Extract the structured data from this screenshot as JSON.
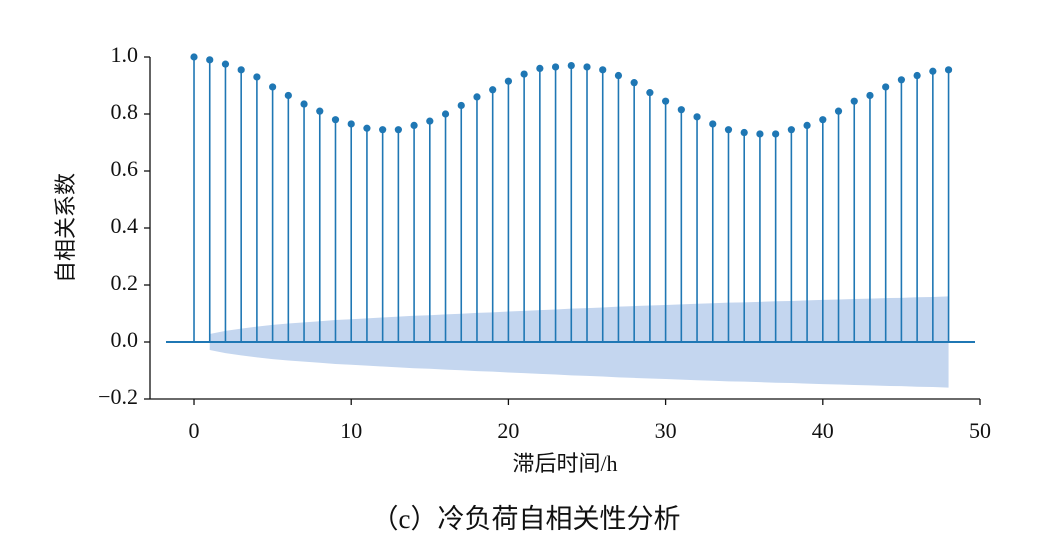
{
  "chart_data": {
    "type": "stem",
    "caption": "（c）冷负荷自相关性分析",
    "xlabel": "滞后时间/h",
    "ylabel": "自相关系数",
    "x": [
      0,
      1,
      2,
      3,
      4,
      5,
      6,
      7,
      8,
      9,
      10,
      11,
      12,
      13,
      14,
      15,
      16,
      17,
      18,
      19,
      20,
      21,
      22,
      23,
      24,
      25,
      26,
      27,
      28,
      29,
      30,
      31,
      32,
      33,
      34,
      35,
      36,
      37,
      38,
      39,
      40,
      41,
      42,
      43,
      44,
      45,
      46,
      47,
      48
    ],
    "values": [
      1.0,
      0.99,
      0.975,
      0.955,
      0.93,
      0.895,
      0.865,
      0.835,
      0.81,
      0.78,
      0.765,
      0.75,
      0.745,
      0.745,
      0.76,
      0.775,
      0.8,
      0.83,
      0.86,
      0.885,
      0.915,
      0.94,
      0.96,
      0.965,
      0.97,
      0.965,
      0.955,
      0.935,
      0.91,
      0.875,
      0.845,
      0.815,
      0.79,
      0.765,
      0.745,
      0.735,
      0.73,
      0.73,
      0.745,
      0.76,
      0.78,
      0.81,
      0.845,
      0.865,
      0.895,
      0.92,
      0.935,
      0.95,
      0.955
    ],
    "color": "#1f77b4",
    "band_x": [
      1,
      2,
      3,
      4,
      5,
      6,
      7,
      8,
      9,
      10,
      11,
      12,
      13,
      14,
      15,
      16,
      17,
      18,
      19,
      20,
      21,
      22,
      23,
      24,
      25,
      26,
      27,
      28,
      29,
      30,
      31,
      32,
      33,
      34,
      35,
      36,
      37,
      38,
      39,
      40,
      41,
      42,
      43,
      44,
      45,
      46,
      47,
      48
    ],
    "band": [
      0.028,
      0.039,
      0.047,
      0.054,
      0.06,
      0.065,
      0.069,
      0.073,
      0.077,
      0.08,
      0.083,
      0.086,
      0.089,
      0.092,
      0.094,
      0.097,
      0.099,
      0.102,
      0.104,
      0.107,
      0.109,
      0.112,
      0.114,
      0.117,
      0.119,
      0.121,
      0.124,
      0.126,
      0.128,
      0.13,
      0.132,
      0.134,
      0.136,
      0.138,
      0.139,
      0.141,
      0.143,
      0.144,
      0.146,
      0.148,
      0.149,
      0.151,
      0.152,
      0.154,
      0.155,
      0.157,
      0.158,
      0.16
    ],
    "band_color": "#c4d6ef",
    "xlim": [
      -2.8,
      50
    ],
    "ylim": [
      -0.2,
      1.0
    ],
    "xticks": [
      0,
      10,
      20,
      30,
      40,
      50
    ],
    "yticks": [
      {
        "value": -0.2,
        "label": "−0.2"
      },
      {
        "value": 0,
        "label": "0.0"
      },
      {
        "value": 0.2,
        "label": "0.2"
      },
      {
        "value": 0.4,
        "label": "0.4"
      },
      {
        "value": 0.6,
        "label": "0.6"
      },
      {
        "value": 0.8,
        "label": "0.8"
      },
      {
        "value": 1.0,
        "label": "1.0"
      }
    ]
  }
}
